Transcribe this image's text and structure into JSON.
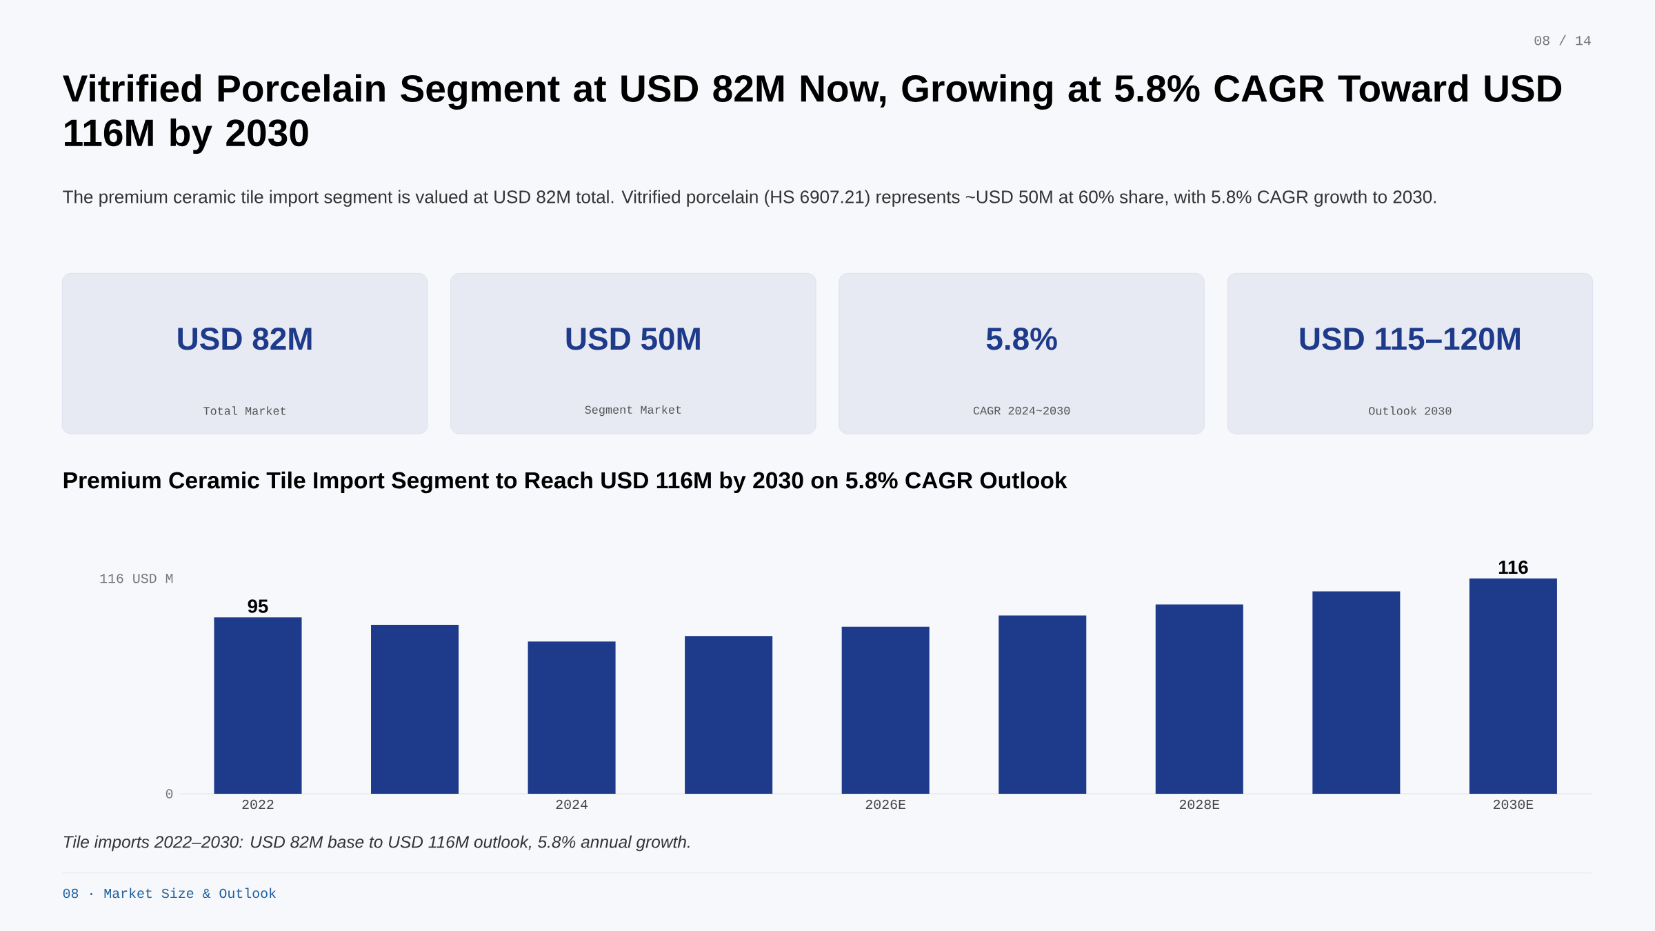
{
  "chart_data": [
    {
      "type": "other",
      "title": "Vitrified Porcelain Segment at USD 82M Now, Growing at 5.8% CAGR Toward USD 116M by 2030",
      "subtitle": "The premium ceramic tile import segment is valued at USD 82M total. Vitrified porcelain (HS 6907.21) represents ~USD 50M at 60% share, with 5.8% CAGR growth to 2030.",
      "annotations": [
        "USD 82M",
        "Total Market",
        "USD 50M",
        "Segment Market",
        "5.8%",
        "CAGR 2024~2030",
        "USD 115–120M",
        "Outlook 2030",
        "08 / 14",
        "08 · Market Size & Outlook"
      ]
    },
    {
      "type": "bar",
      "title": "Premium Ceramic Tile Import Segment to Reach USD 116M by 2030 on 5.8% CAGR Outlook",
      "categories": [
        "2022",
        null,
        "2024",
        null,
        "2026E",
        null,
        "2028E",
        null,
        "2030E"
      ],
      "values": [
        95,
        91,
        82,
        85,
        90,
        96,
        102,
        109,
        116
      ],
      "value_labels": [
        "95",
        null,
        null,
        null,
        null,
        null,
        null,
        null,
        "116"
      ],
      "color": "#1e3a8a",
      "ylim": [
        0,
        116
      ],
      "yticks": [
        0,
        {
          "value": 116,
          "label": "116 USD M"
        }
      ],
      "annotations": [
        "Tile imports 2022–2030: USD 82M base to USD 116M outlook, 5.8% annual growth."
      ]
    }
  ]
}
